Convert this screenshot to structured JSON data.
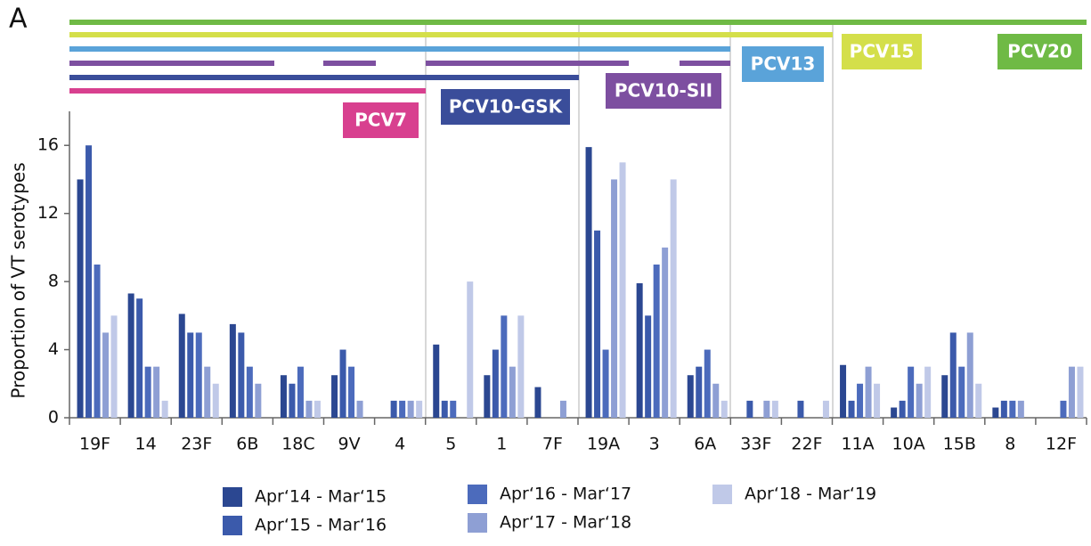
{
  "chart_data": {
    "type": "bar",
    "panel": "A",
    "ylabel": "Proportion of VT serotypes",
    "categories": [
      "19F",
      "14",
      "23F",
      "6B",
      "18C",
      "9V",
      "4",
      "5",
      "1",
      "7F",
      "19A",
      "3",
      "6A",
      "33F",
      "22F",
      "11A",
      "10A",
      "15B",
      "8",
      "12F"
    ],
    "series": [
      {
        "name": "Apr‘14 - Mar‘15",
        "color": "#2b4791",
        "values": [
          14,
          7.3,
          6.1,
          5.5,
          2.5,
          2.5,
          0,
          4.3,
          2.5,
          1.8,
          15.9,
          7.9,
          2.5,
          0,
          0,
          3.1,
          0.6,
          2.5,
          0.6,
          0
        ]
      },
      {
        "name": "Apr‘15 - Mar‘16",
        "color": "#3b5aab",
        "values": [
          16,
          7,
          5,
          5,
          2,
          4,
          1,
          1,
          4,
          0,
          11,
          6,
          3,
          1,
          1,
          1,
          1,
          5,
          1,
          0
        ]
      },
      {
        "name": "Apr‘16 - Mar‘17",
        "color": "#4c6bbc",
        "values": [
          9,
          3,
          5,
          3,
          3,
          3,
          1,
          1,
          6,
          0,
          4,
          9,
          4,
          0,
          0,
          2,
          3,
          3,
          1,
          1
        ]
      },
      {
        "name": "Apr‘17 - Mar‘18",
        "color": "#8e9fd4",
        "values": [
          5,
          3,
          3,
          2,
          1,
          1,
          1,
          0,
          3,
          1,
          14,
          10,
          2,
          1,
          0,
          3,
          2,
          5,
          1,
          3
        ]
      },
      {
        "name": "Apr‘18 - Mar‘19",
        "color": "#c0c9e8",
        "values": [
          6,
          1,
          2,
          0,
          1,
          0,
          1,
          8,
          6,
          0,
          15,
          14,
          1,
          1,
          1,
          2,
          3,
          2,
          0,
          3
        ]
      }
    ],
    "ylim": [
      0,
      18
    ],
    "yticks": [
      0,
      4,
      8,
      12,
      16
    ],
    "vaccines": [
      {
        "label": "PCV7",
        "color": "#d8408f"
      },
      {
        "label": "PCV10-GSK",
        "color": "#3a4d9a"
      },
      {
        "label": "PCV10-SII",
        "color": "#7d4fa0"
      },
      {
        "label": "PCV13",
        "color": "#5aa3d9"
      },
      {
        "label": "PCV15",
        "color": "#d4df4a"
      },
      {
        "label": "PCV20",
        "color": "#6fba45"
      }
    ]
  }
}
